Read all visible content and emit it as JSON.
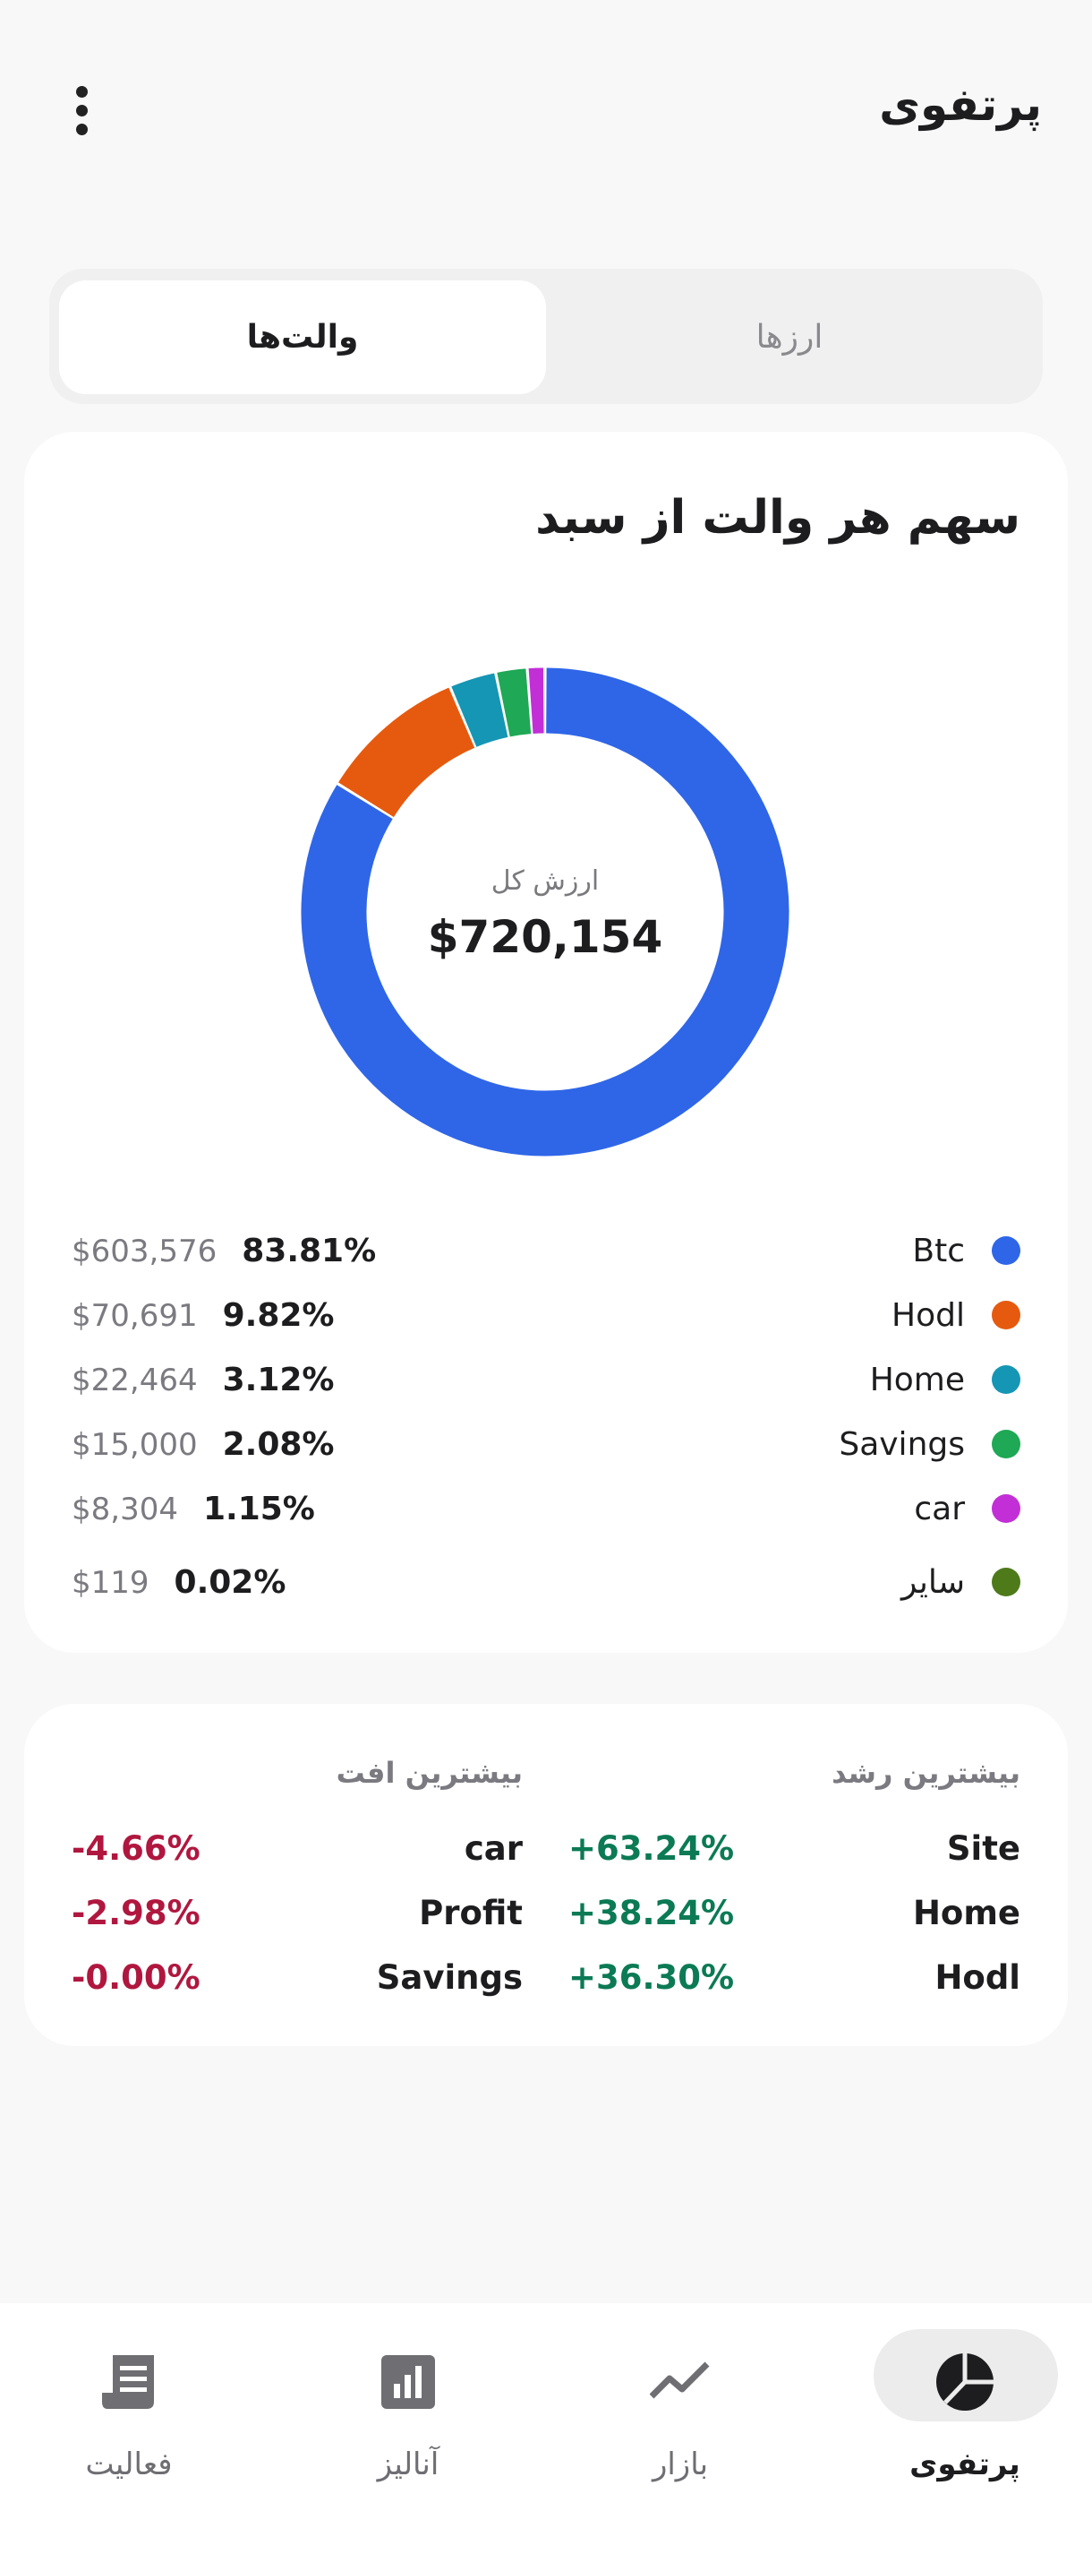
{
  "header": {
    "title": "پرتفوی"
  },
  "tabs": {
    "coins": "ارزها",
    "wallets": "والت‌ها"
  },
  "chart_data": {
    "type": "pie",
    "title": "سهم هر والت از سبد",
    "center_label": "ارزش کل",
    "center_value": "$720,154",
    "categories": [
      "Btc",
      "Hodl",
      "Home",
      "Savings",
      "car",
      "سایر"
    ],
    "values": [
      83.81,
      9.82,
      3.12,
      2.08,
      1.15,
      0.02
    ],
    "value_labels": [
      "83.81%",
      "9.82%",
      "3.12%",
      "2.08%",
      "1.15%",
      "0.02%"
    ],
    "amounts": [
      "$603,576",
      "$70,691",
      "$22,464",
      "$15,000",
      "$8,304",
      "$119"
    ],
    "colors": [
      "#2F66E8",
      "#E65A0F",
      "#1596B5",
      "#1FA855",
      "#C22FD6",
      "#4E7A1A"
    ]
  },
  "movers": {
    "gainers": {
      "title": "بیشترین رشد",
      "rows": [
        {
          "name": "Site",
          "change": "+63.24%"
        },
        {
          "name": "Home",
          "change": "+38.24%"
        },
        {
          "name": "Hodl",
          "change": "+36.30%"
        }
      ]
    },
    "losers": {
      "title": "بیشترین افت",
      "rows": [
        {
          "name": "car",
          "change": "-4.66%"
        },
        {
          "name": "Profit",
          "change": "-2.98%"
        },
        {
          "name": "Savings",
          "change": "-0.00%"
        }
      ]
    }
  },
  "nav": [
    {
      "label": "پرتفوی"
    },
    {
      "label": "بازار"
    },
    {
      "label": "آنالیز"
    },
    {
      "label": "فعالیت"
    }
  ]
}
